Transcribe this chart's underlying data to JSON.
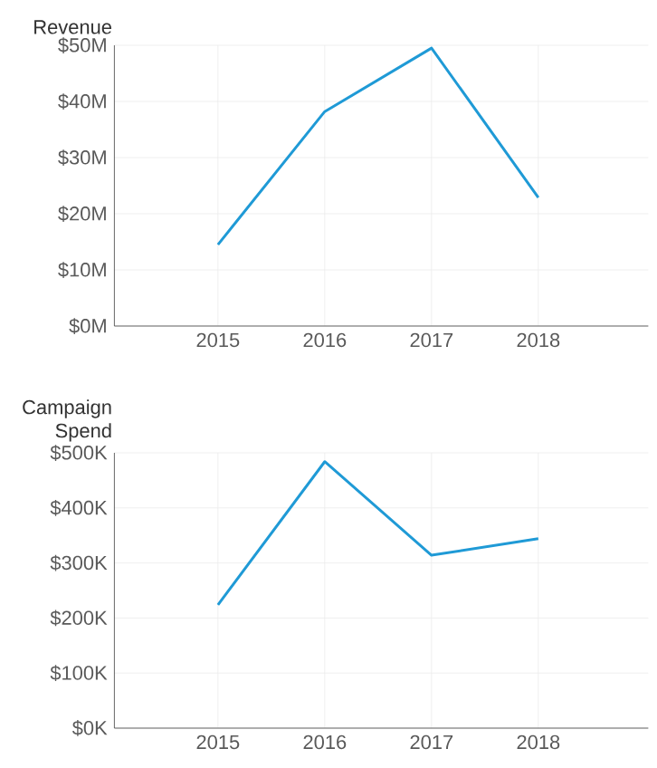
{
  "chart_data": [
    {
      "type": "line",
      "ylabel": "Revenue",
      "categories": [
        "2015",
        "2016",
        "2017",
        "2018"
      ],
      "values": [
        14.5,
        38.2,
        49.5,
        22.9
      ],
      "color": "#1f9ad6",
      "ylim": [
        0,
        50
      ],
      "yticks": [
        {
          "value": 0,
          "label": "$0M"
        },
        {
          "value": 10,
          "label": "$10M"
        },
        {
          "value": 20,
          "label": "$20M"
        },
        {
          "value": 30,
          "label": "$30M"
        },
        {
          "value": 40,
          "label": "$40M"
        },
        {
          "value": 50,
          "label": "$50M"
        }
      ],
      "grid": true,
      "marker": "none",
      "line_style": "solid"
    },
    {
      "type": "line",
      "ylabel": "Campaign Spend",
      "categories": [
        "2015",
        "2016",
        "2017",
        "2018"
      ],
      "values": [
        224,
        484,
        314,
        344
      ],
      "color": "#1f9ad6",
      "ylim": [
        0,
        500
      ],
      "yticks": [
        {
          "value": 0,
          "label": "$0K"
        },
        {
          "value": 100,
          "label": "$100K"
        },
        {
          "value": 200,
          "label": "$200K"
        },
        {
          "value": 300,
          "label": "$300K"
        },
        {
          "value": 400,
          "label": "$400K"
        },
        {
          "value": 500,
          "label": "$500K"
        }
      ],
      "grid": true,
      "marker": "none",
      "line_style": "solid"
    }
  ]
}
